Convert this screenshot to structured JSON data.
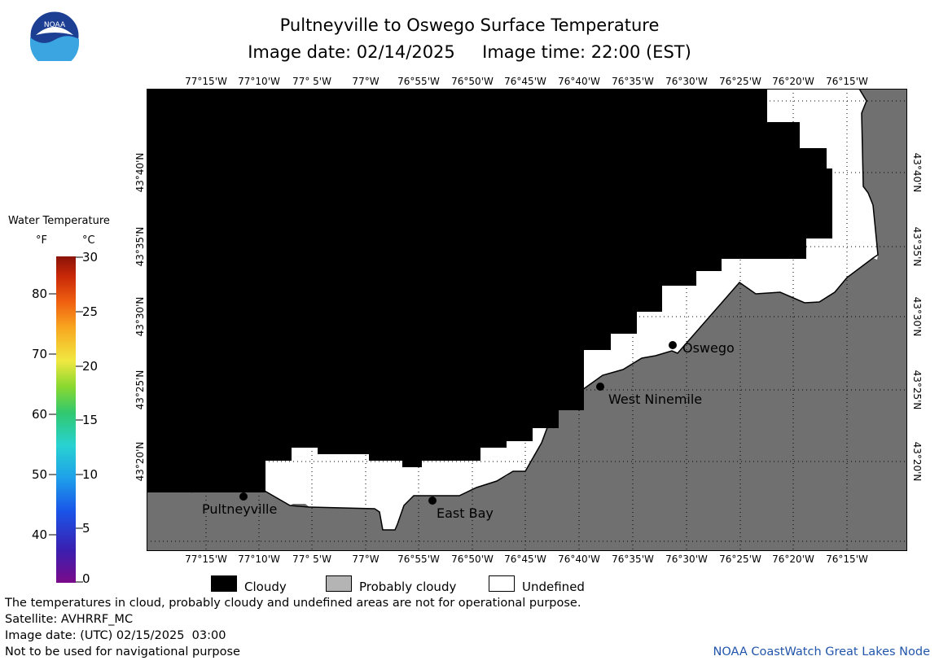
{
  "header": {
    "title": "Pultneyville to Oswego Surface Temperature",
    "subtitle": "Image date: 02/14/2025     Image time: 22:00 (EST)"
  },
  "logo": {
    "text": "NOAA",
    "icon": "noaa-logo-icon"
  },
  "map": {
    "lon_labels": [
      "77°15'W",
      "77°10'W",
      "77° 5'W",
      "77°W",
      "76°55'W",
      "76°50'W",
      "76°45'W",
      "76°40'W",
      "76°35'W",
      "76°30'W",
      "76°25'W",
      "76°20'W",
      "76°15'W"
    ],
    "lat_labels": [
      "43°40'N",
      "43°35'N",
      "43°30'N",
      "43°25'N",
      "43°20'N"
    ],
    "places": [
      {
        "name": "Pultneyville"
      },
      {
        "name": "East Bay"
      },
      {
        "name": "West Ninemile"
      },
      {
        "name": "Oswego"
      }
    ],
    "colors": {
      "cloudy": "#000000",
      "land": "#707070",
      "undefined": "#ffffff"
    }
  },
  "colorbar": {
    "title": "Water Temperature",
    "unit_f": "°F",
    "unit_c": "°C",
    "f_ticks": [
      "80",
      "70",
      "60",
      "50",
      "40"
    ],
    "c_ticks": [
      "30",
      "25",
      "20",
      "15",
      "10",
      "5",
      "0"
    ]
  },
  "legend": {
    "cloudy": "Cloudy",
    "probably_cloudy": "Probably cloudy",
    "undefined": "Undefined",
    "swatch_colors": {
      "cloudy": "#000000",
      "probably_cloudy": "#b4b4b4",
      "undefined": "#ffffff"
    }
  },
  "notes": {
    "line1": "The temperatures in cloud, probably cloudy and undefined areas are not for operational purpose.",
    "line2": "Satellite: AVHRRF_MC",
    "line3": "Image date: (UTC) 02/15/2025  03:00",
    "line4": "Not to be used for navigational purpose"
  },
  "credit": "NOAA CoastWatch Great Lakes Node"
}
